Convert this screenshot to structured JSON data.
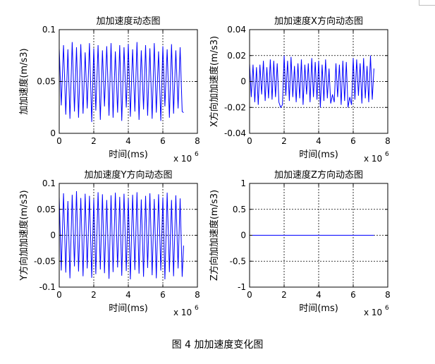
{
  "caption": "图 4  加加速度变化图",
  "colors": {
    "line": "#0000ff",
    "axes": "#000000",
    "grid": "#000000",
    "background": "#ffffff"
  },
  "chart_data": [
    {
      "type": "line",
      "title": "加加速度动态图",
      "xlabel": "时间(ms)",
      "ylabel": "加加速度(m/s3)",
      "x_multiplier": "x 10",
      "x_multiplier_exp": "6",
      "xlim": [
        0,
        8
      ],
      "ylim": [
        0,
        0.1
      ],
      "xticks": [
        "0",
        "2",
        "4",
        "6",
        "8"
      ],
      "yticks": [
        "0",
        "0.05",
        "0.1"
      ],
      "grid": true,
      "series": [
        {
          "x": [
            0.0,
            0.12,
            0.25,
            0.38,
            0.5,
            0.62,
            0.75,
            0.88,
            1.0,
            1.12,
            1.25,
            1.38,
            1.5,
            1.62,
            1.75,
            1.88,
            2.0,
            2.12,
            2.25,
            2.38,
            2.5,
            2.62,
            2.75,
            2.88,
            3.0,
            3.12,
            3.25,
            3.38,
            3.5,
            3.62,
            3.75,
            3.88,
            4.0,
            4.12,
            4.25,
            4.38,
            4.5,
            4.62,
            4.75,
            4.88,
            5.0,
            5.12,
            5.25,
            5.38,
            5.5,
            5.62,
            5.75,
            5.88,
            6.0,
            6.12,
            6.25,
            6.38,
            6.5,
            6.62,
            6.75,
            6.88,
            7.0,
            7.12,
            7.2
          ],
          "values": [
            0.082,
            0.027,
            0.085,
            0.018,
            0.081,
            0.014,
            0.088,
            0.021,
            0.083,
            0.015,
            0.086,
            0.019,
            0.078,
            0.024,
            0.087,
            0.011,
            0.082,
            0.022,
            0.085,
            0.013,
            0.08,
            0.026,
            0.084,
            0.017,
            0.087,
            0.015,
            0.079,
            0.02,
            0.085,
            0.012,
            0.083,
            0.025,
            0.086,
            0.016,
            0.081,
            0.021,
            0.088,
            0.013,
            0.08,
            0.023,
            0.085,
            0.017,
            0.082,
            0.014,
            0.087,
            0.02,
            0.079,
            0.012,
            0.084,
            0.026,
            0.081,
            0.015,
            0.086,
            0.019,
            0.08,
            0.024,
            0.083,
            0.021,
            0.02
          ]
        }
      ]
    },
    {
      "type": "line",
      "title": "加加速度X方向动态图",
      "xlabel": "时间(ms)",
      "ylabel": "X方向加加速度(m/s3)",
      "x_multiplier": "x 10",
      "x_multiplier_exp": "6",
      "xlim": [
        0,
        8
      ],
      "ylim": [
        -0.04,
        0.04
      ],
      "xticks": [
        "0",
        "2",
        "4",
        "6",
        "8"
      ],
      "yticks": [
        "-0.04",
        "-0.02",
        "0",
        "0.02",
        "0.04"
      ],
      "grid": true,
      "series": [
        {
          "x": [
            0.0,
            0.1,
            0.2,
            0.3,
            0.4,
            0.5,
            0.6,
            0.7,
            0.8,
            0.9,
            1.0,
            1.1,
            1.2,
            1.3,
            1.4,
            1.5,
            1.6,
            1.7,
            1.8,
            1.9,
            2.0,
            2.1,
            2.2,
            2.3,
            2.4,
            2.5,
            2.6,
            2.7,
            2.8,
            2.9,
            3.0,
            3.1,
            3.2,
            3.3,
            3.4,
            3.5,
            3.6,
            3.7,
            3.8,
            3.9,
            4.0,
            4.1,
            4.2,
            4.3,
            4.4,
            4.5,
            4.6,
            4.7,
            4.8,
            4.9,
            5.0,
            5.1,
            5.2,
            5.3,
            5.4,
            5.5,
            5.6,
            5.7,
            5.8,
            5.9,
            6.0,
            6.1,
            6.2,
            6.3,
            6.4,
            6.5,
            6.6,
            6.7,
            6.8,
            6.9,
            7.0,
            7.1,
            7.2
          ],
          "values": [
            0.014,
            -0.012,
            0.013,
            -0.016,
            0.011,
            -0.018,
            0.013,
            -0.01,
            0.016,
            -0.015,
            0.011,
            -0.013,
            0.017,
            -0.014,
            0.016,
            -0.012,
            0.014,
            -0.016,
            -0.02,
            -0.018,
            0.02,
            -0.011,
            0.016,
            -0.015,
            0.019,
            -0.012,
            0.012,
            -0.016,
            0.014,
            -0.013,
            0.017,
            -0.018,
            0.013,
            -0.01,
            0.014,
            -0.016,
            0.018,
            -0.012,
            0.015,
            -0.014,
            0.016,
            -0.02,
            0.013,
            -0.015,
            0.017,
            -0.013,
            0.01,
            -0.017,
            -0.01,
            -0.016,
            0.014,
            -0.012,
            0.013,
            -0.018,
            0.016,
            -0.015,
            0.015,
            -0.02,
            -0.012,
            -0.018,
            0.018,
            -0.014,
            0.017,
            -0.011,
            0.014,
            -0.017,
            0.018,
            -0.013,
            0.012,
            -0.016,
            0.02,
            -0.014,
            0.01
          ]
        }
      ]
    },
    {
      "type": "line",
      "title": "加加速度Y方向动态图",
      "xlabel": "时间(ms)",
      "ylabel": "Y方向加加速度(m/s3)",
      "x_multiplier": "x 10",
      "x_multiplier_exp": "6",
      "xlim": [
        0,
        8
      ],
      "ylim": [
        -0.1,
        0.1
      ],
      "xticks": [
        "0",
        "2",
        "4",
        "6",
        "8"
      ],
      "yticks": [
        "-0.1",
        "-0.05",
        "0",
        "0.05",
        "0.1"
      ],
      "grid": true,
      "series": [
        {
          "x": [
            0.0,
            0.12,
            0.25,
            0.38,
            0.5,
            0.62,
            0.75,
            0.88,
            1.0,
            1.12,
            1.25,
            1.38,
            1.5,
            1.62,
            1.75,
            1.88,
            2.0,
            2.12,
            2.25,
            2.38,
            2.5,
            2.62,
            2.75,
            2.88,
            3.0,
            3.12,
            3.25,
            3.38,
            3.5,
            3.62,
            3.75,
            3.88,
            4.0,
            4.12,
            4.25,
            4.38,
            4.5,
            4.62,
            4.75,
            4.88,
            5.0,
            5.12,
            5.25,
            5.38,
            5.5,
            5.62,
            5.75,
            5.88,
            6.0,
            6.12,
            6.25,
            6.38,
            6.5,
            6.62,
            6.75,
            6.88,
            7.0,
            7.12,
            7.2
          ],
          "values": [
            0.074,
            -0.068,
            0.081,
            -0.072,
            0.066,
            -0.083,
            0.078,
            -0.06,
            0.085,
            -0.07,
            0.072,
            -0.079,
            0.08,
            -0.064,
            0.076,
            -0.082,
            0.07,
            -0.075,
            0.083,
            -0.066,
            0.079,
            -0.073,
            0.068,
            -0.084,
            0.077,
            -0.071,
            0.082,
            -0.062,
            0.074,
            -0.078,
            0.08,
            -0.069,
            0.071,
            -0.085,
            0.078,
            -0.067,
            0.083,
            -0.074,
            0.069,
            -0.08,
            0.076,
            -0.063,
            0.081,
            -0.077,
            0.07,
            -0.083,
            0.079,
            -0.068,
            0.073,
            -0.085,
            0.082,
            -0.071,
            0.068,
            -0.079,
            0.077,
            -0.064,
            0.071,
            -0.08,
            -0.02
          ]
        }
      ]
    },
    {
      "type": "line",
      "title": "加加速度Z方向动态图",
      "xlabel": "时间(ms)",
      "ylabel": "Z方向加加速度(m/s3)",
      "x_multiplier": "x 10",
      "x_multiplier_exp": "6",
      "xlim": [
        0,
        8
      ],
      "ylim": [
        -1,
        1
      ],
      "xticks": [
        "0",
        "2",
        "4",
        "6",
        "8"
      ],
      "yticks": [
        "-1",
        "-0.5",
        "0",
        "0.5",
        "1"
      ],
      "grid": true,
      "series": [
        {
          "x": [
            0,
            7.2
          ],
          "values": [
            0,
            0
          ]
        }
      ]
    }
  ]
}
